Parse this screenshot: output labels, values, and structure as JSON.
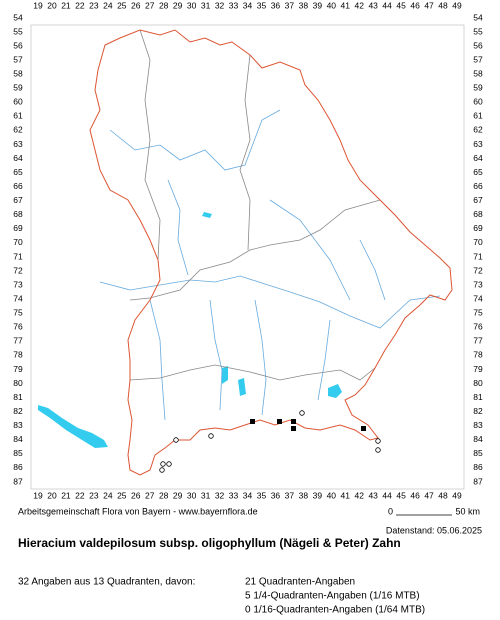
{
  "map": {
    "x_labels": [
      19,
      20,
      21,
      22,
      23,
      24,
      25,
      26,
      27,
      28,
      29,
      30,
      31,
      32,
      33,
      34,
      35,
      36,
      37,
      38,
      39,
      40,
      41,
      42,
      43,
      44,
      45,
      46,
      47,
      48,
      49
    ],
    "y_labels": [
      54,
      55,
      56,
      57,
      58,
      59,
      60,
      61,
      62,
      63,
      64,
      65,
      66,
      67,
      68,
      69,
      70,
      71,
      72,
      73,
      74,
      75,
      76,
      77,
      78,
      79,
      80,
      81,
      82,
      83,
      84,
      85,
      86,
      87
    ],
    "credit": "Arbeitsgemeinschaft Flora von Bayern - www.bayernflora.de",
    "scale_start": "0",
    "scale_end": "50 km",
    "date": "Datenstand: 05.06.2025"
  },
  "title": "Hieracium valdepilosum subsp. oligophyllum (Nägeli & Peter) Zahn",
  "summary": "32 Angaben aus 13 Quadranten, davon:",
  "stats": [
    "21 Quadranten-Angaben",
    "5 1/4-Quadranten-Angaben (1/16 MTB)",
    "0 1/16-Quadranten-Angaben (1/64 MTB)"
  ]
}
